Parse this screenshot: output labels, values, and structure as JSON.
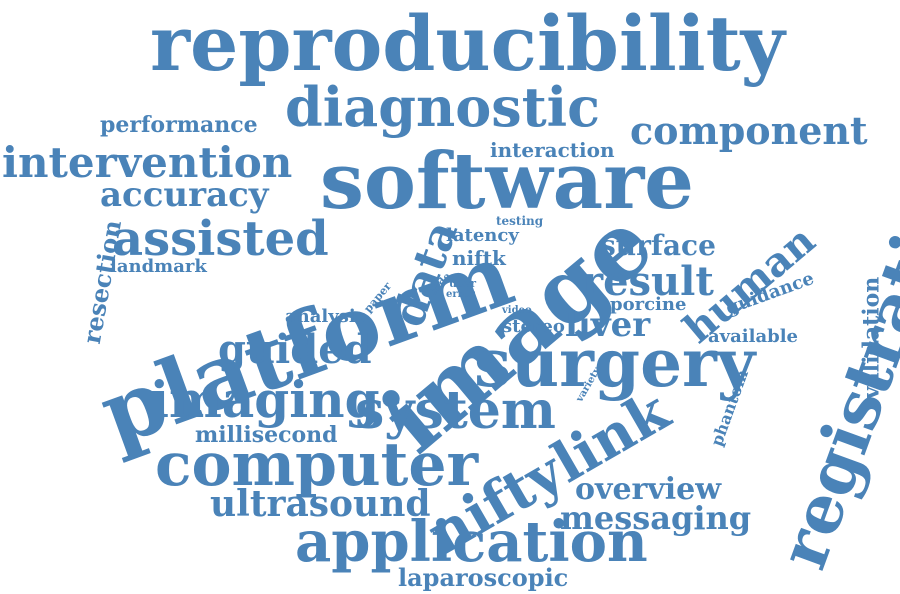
{
  "color": "#4a83b8",
  "words": {
    "reproducibility": "reproducibility",
    "diagnostic": "diagnostic",
    "software": "software",
    "component": "component",
    "performance": "performance",
    "intervention": "intervention",
    "accuracy": "accuracy",
    "interaction": "interaction",
    "assisted": "assisted",
    "platform": "platform",
    "image": "image",
    "data": "data",
    "surgery": "surgery",
    "registration": "registration",
    "validation": "validation",
    "human": "human",
    "surface": "surface",
    "result": "result",
    "porcine": "porcine",
    "guidance": "guidance",
    "available": "available",
    "liver": "liver",
    "stereo": "stereo",
    "video": "video",
    "latency": "latency",
    "testing": "testing",
    "niftk": "niftk",
    "code": "code",
    "user": "user",
    "error": "error",
    "paper": "paper",
    "resection": "resection",
    "landmark": "landmark",
    "analysis": "analysis",
    "guided": "guided",
    "imaging": "imaging",
    "system": "system",
    "millisecond": "millisecond",
    "computer": "computer",
    "niftylink": "niftylink",
    "variety": "variety",
    "phantom": "phantom",
    "overview": "overview",
    "ultrasound": "ultrasound",
    "messaging": "messaging",
    "application": "application",
    "laparoscopic": "laparoscopic"
  }
}
